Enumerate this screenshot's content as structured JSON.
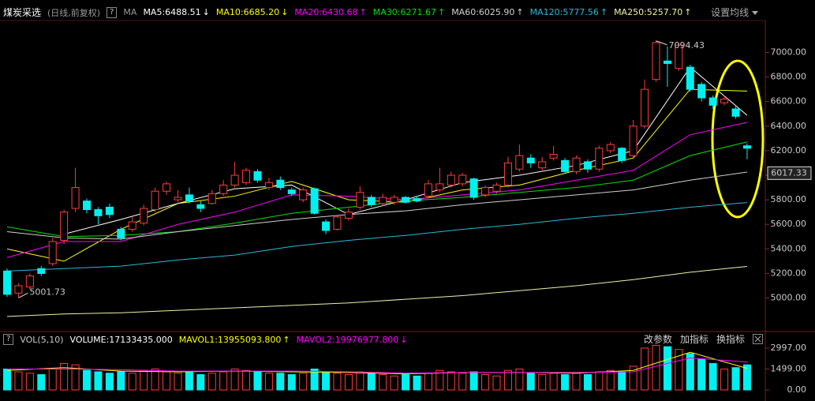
{
  "header": {
    "title": "煤炭采选",
    "subtitle": "(日线,前复权)",
    "help": "?",
    "indicator": "MA",
    "settings": "设置均线"
  },
  "toolbar": {
    "help": "?",
    "buttons": [
      "改参数",
      "加指标",
      "换指标"
    ]
  },
  "chart_data": [
    {
      "type": "candlestick",
      "open": [
        5220,
        5040,
        5090,
        5240,
        5280,
        5470,
        5730,
        5790,
        5720,
        5740,
        5560,
        5560,
        5610,
        5720,
        5870,
        5800,
        5840,
        5760,
        5770,
        5850,
        5920,
        5940,
        6030,
        5900,
        5960,
        5880,
        5800,
        5890,
        5620,
        5560,
        5650,
        5740,
        5820,
        5770,
        5780,
        5820,
        5810,
        5830,
        5880,
        5920,
        5930,
        5970,
        5840,
        5870,
        5920,
        6050,
        6140,
        6060,
        6140,
        6120,
        6030,
        6110,
        6050,
        6200,
        6220,
        6160,
        6400,
        6780,
        6930,
        6870,
        6880,
        6740,
        6630,
        6590,
        6540,
        6240
      ],
      "high": [
        5240,
        5120,
        5200,
        5260,
        5490,
        5720,
        6060,
        5810,
        5740,
        5770,
        5580,
        5660,
        5760,
        5900,
        5950,
        5880,
        5900,
        5790,
        5880,
        5960,
        6110,
        6060,
        6050,
        5980,
        5990,
        5900,
        5900,
        5900,
        5640,
        5680,
        5730,
        5910,
        5840,
        5850,
        5840,
        5830,
        5830,
        5960,
        6060,
        6030,
        6020,
        5980,
        5920,
        5940,
        6150,
        6250,
        6170,
        6150,
        6240,
        6140,
        6160,
        6130,
        6240,
        6270,
        6230,
        6450,
        6780,
        7094.43,
        7050,
        7080,
        6900,
        6760,
        6650,
        6650,
        6560,
        6260
      ],
      "low": [
        5010,
        5001.73,
        5070,
        5180,
        5260,
        5440,
        5700,
        5690,
        5600,
        5650,
        5470,
        5540,
        5590,
        5700,
        5840,
        5780,
        5770,
        5700,
        5760,
        5830,
        5900,
        5920,
        5940,
        5880,
        5880,
        5830,
        5780,
        5680,
        5520,
        5550,
        5630,
        5720,
        5740,
        5750,
        5760,
        5770,
        5780,
        5810,
        5860,
        5900,
        5910,
        5800,
        5820,
        5850,
        5900,
        6030,
        6060,
        6040,
        6120,
        6010,
        6010,
        6020,
        6030,
        6180,
        6100,
        6140,
        6380,
        6760,
        6720,
        6850,
        6680,
        6600,
        6540,
        6570,
        6460,
        6130
      ],
      "close": [
        5030,
        5100,
        5180,
        5200,
        5460,
        5700,
        5900,
        5720,
        5670,
        5680,
        5490,
        5620,
        5730,
        5870,
        5930,
        5820,
        5790,
        5730,
        5850,
        5920,
        6000,
        6040,
        5960,
        5940,
        5900,
        5850,
        5880,
        5690,
        5550,
        5660,
        5700,
        5860,
        5760,
        5820,
        5820,
        5780,
        5790,
        5930,
        5930,
        6000,
        6000,
        5820,
        5900,
        5920,
        6100,
        6160,
        6100,
        6110,
        6170,
        6030,
        6140,
        6050,
        6220,
        6250,
        6120,
        6400,
        6700,
        7080,
        6910,
        7060,
        6700,
        6630,
        6570,
        6620,
        6480,
        6220
      ],
      "up_color": "#ff3c3c",
      "down_color": "#00f0f0",
      "ylim": [
        4740,
        7260
      ],
      "yticks": [
        {
          "value": 5000,
          "label": "5000.00"
        },
        {
          "value": 5200,
          "label": "5200.00"
        },
        {
          "value": 5400,
          "label": "5400.00"
        },
        {
          "value": 5600,
          "label": "5600.00"
        },
        {
          "value": 5800,
          "label": "5800.00"
        },
        {
          "value": 6000,
          "label": "6000.00"
        },
        {
          "value": 6200,
          "label": "6200.00"
        },
        {
          "value": 6400,
          "label": "6400.00"
        },
        {
          "value": 6600,
          "label": "6600.00"
        },
        {
          "value": 6800,
          "label": "6800.00"
        },
        {
          "value": 7000,
          "label": "7000.00"
        }
      ],
      "price_marker": 6017.33,
      "series": [
        {
          "name": "MA5:6488.51",
          "arrow": "↓",
          "color": "#ffffff",
          "x": [
            0,
            5,
            10,
            15,
            20,
            25,
            30,
            35,
            40,
            45,
            50,
            55,
            60,
            65
          ],
          "values": [
            null,
            5520,
            5640,
            5770,
            5890,
            5920,
            5680,
            5800,
            5940,
            6000,
            6080,
            6200,
            6880,
            6488.51
          ]
        },
        {
          "name": "MA10:6685.20",
          "arrow": "↓",
          "color": "#ffff00",
          "x": [
            0,
            5,
            10,
            15,
            20,
            25,
            30,
            35,
            40,
            45,
            50,
            55,
            60,
            65
          ],
          "values": [
            5400,
            5300,
            5560,
            5770,
            5830,
            5950,
            5800,
            5780,
            5880,
            5920,
            6040,
            6140,
            6700,
            6685.2
          ]
        },
        {
          "name": "MA20:6430.68",
          "arrow": "↑",
          "color": "#ff00ff",
          "x": [
            0,
            5,
            10,
            15,
            20,
            25,
            30,
            35,
            40,
            45,
            50,
            55,
            60,
            65
          ],
          "values": [
            5330,
            5460,
            5460,
            5600,
            5700,
            5840,
            5830,
            5800,
            5840,
            5880,
            5960,
            6040,
            6330,
            6430.68
          ]
        },
        {
          "name": "MA30:6271.67",
          "arrow": "↑",
          "color": "#00e000",
          "x": [
            0,
            5,
            10,
            15,
            20,
            25,
            30,
            35,
            40,
            45,
            50,
            55,
            60,
            65
          ],
          "values": [
            5580,
            5500,
            5510,
            5540,
            5610,
            5690,
            5740,
            5790,
            5820,
            5860,
            5900,
            5960,
            6160,
            6271.67
          ]
        },
        {
          "name": "MA60:6025.90",
          "arrow": "↑",
          "color": "#d0d0d0",
          "x": [
            0,
            5,
            10,
            15,
            20,
            25,
            30,
            35,
            40,
            45,
            50,
            55,
            60,
            65
          ],
          "values": [
            5540,
            5490,
            5480,
            5540,
            5590,
            5640,
            5680,
            5710,
            5760,
            5800,
            5840,
            5880,
            5960,
            6025.9
          ]
        },
        {
          "name": "MA120:5777.56",
          "arrow": "↑",
          "color": "#2cb8d8",
          "x": [
            0,
            5,
            10,
            15,
            20,
            25,
            30,
            35,
            40,
            45,
            50,
            55,
            60,
            65
          ],
          "values": [
            5220,
            5240,
            5260,
            5310,
            5350,
            5420,
            5470,
            5510,
            5560,
            5600,
            5650,
            5690,
            5740,
            5777.56
          ]
        },
        {
          "name": "MA250:5257.70",
          "arrow": "↑",
          "color": "#f0f0a8",
          "x": [
            0,
            5,
            10,
            15,
            20,
            25,
            30,
            35,
            40,
            45,
            50,
            55,
            60,
            65
          ],
          "values": [
            4850,
            4870,
            4880,
            4900,
            4920,
            4940,
            4960,
            4990,
            5020,
            5060,
            5100,
            5150,
            5210,
            5257.7
          ]
        }
      ]
    },
    {
      "type": "bar",
      "title": "VOL(5,10)",
      "volume_label": "VOLUME:17133435.000",
      "values": [
        1500,
        1300,
        1200,
        1100,
        1500,
        1900,
        1800,
        1400,
        1300,
        1200,
        1300,
        1200,
        1400,
        1500,
        1300,
        1200,
        1300,
        1100,
        1200,
        1300,
        1500,
        1400,
        1300,
        1200,
        1200,
        1100,
        1200,
        1500,
        1300,
        1200,
        1100,
        1300,
        1200,
        1100,
        1000,
        1100,
        1000,
        1200,
        1400,
        1300,
        1200,
        1300,
        1100,
        1000,
        1400,
        1500,
        1200,
        1100,
        1200,
        1100,
        1200,
        1100,
        1300,
        1400,
        1300,
        1700,
        3000,
        3200,
        3100,
        2900,
        2600,
        2200,
        1900,
        1500,
        1600,
        1800
      ],
      "ylim": [
        0,
        3280
      ],
      "yticks": [
        {
          "value": 0,
          "label": "0.00"
        },
        {
          "value": 1499,
          "label": "1499.00"
        },
        {
          "value": 2997,
          "label": "2997.00"
        }
      ],
      "series": [
        {
          "name": "MAVOL1:13955093.800",
          "arrow": "↑",
          "color": "#ffff00",
          "x": [
            0,
            5,
            10,
            15,
            20,
            25,
            30,
            35,
            40,
            45,
            50,
            55,
            60,
            65
          ],
          "values": [
            1400,
            1600,
            1350,
            1300,
            1350,
            1300,
            1250,
            1150,
            1250,
            1250,
            1200,
            1400,
            2700,
            1550
          ]
        },
        {
          "name": "MAVOL2:19976977.800",
          "arrow": "↓",
          "color": "#ff00ff",
          "x": [
            0,
            5,
            10,
            15,
            20,
            25,
            30,
            35,
            40,
            45,
            50,
            55,
            60,
            65
          ],
          "values": [
            1500,
            1500,
            1450,
            1350,
            1350,
            1350,
            1300,
            1200,
            1250,
            1250,
            1250,
            1300,
            2300,
            2000
          ]
        }
      ]
    }
  ]
}
